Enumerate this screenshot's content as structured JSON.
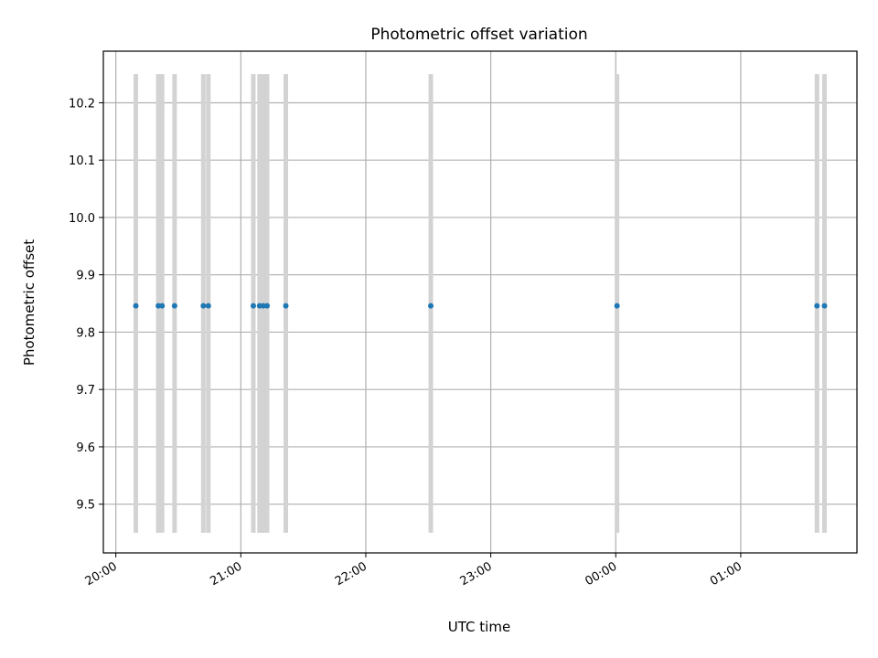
{
  "chart_data": {
    "type": "scatter",
    "title": "Photometric offset variation",
    "xlabel": "UTC time",
    "ylabel": "Photometric offset",
    "x_unit": "hours since 20:00 UTC",
    "xlim": [
      -0.1,
      5.93
    ],
    "ylim": [
      9.415,
      10.29
    ],
    "grid": true,
    "x_ticks": [
      {
        "value": 0,
        "label": "20:00"
      },
      {
        "value": 1,
        "label": "21:00"
      },
      {
        "value": 2,
        "label": "22:00"
      },
      {
        "value": 3,
        "label": "23:00"
      },
      {
        "value": 4,
        "label": "00:00"
      },
      {
        "value": 5,
        "label": "01:00"
      }
    ],
    "y_ticks": [
      {
        "value": 9.5,
        "label": "9.5"
      },
      {
        "value": 9.6,
        "label": "9.6"
      },
      {
        "value": 9.7,
        "label": "9.7"
      },
      {
        "value": 9.8,
        "label": "9.8"
      },
      {
        "value": 9.9,
        "label": "9.9"
      },
      {
        "value": 10.0,
        "label": "10.0"
      },
      {
        "value": 10.1,
        "label": "10.1"
      },
      {
        "value": 10.2,
        "label": "10.2"
      }
    ],
    "marker_color": "#1f77b4",
    "band_color": "#d3d3d3",
    "band_range": [
      9.45,
      10.25
    ],
    "series": [
      {
        "x": [
          0.16,
          0.34,
          0.37,
          0.47,
          0.7,
          0.74,
          1.1,
          1.15,
          1.18,
          1.21,
          1.36,
          2.52,
          4.01,
          5.61,
          5.67
        ],
        "y": [
          9.846,
          9.846,
          9.846,
          9.846,
          9.846,
          9.846,
          9.846,
          9.846,
          9.846,
          9.846,
          9.846,
          9.846,
          9.846,
          9.846,
          9.846
        ]
      }
    ]
  }
}
